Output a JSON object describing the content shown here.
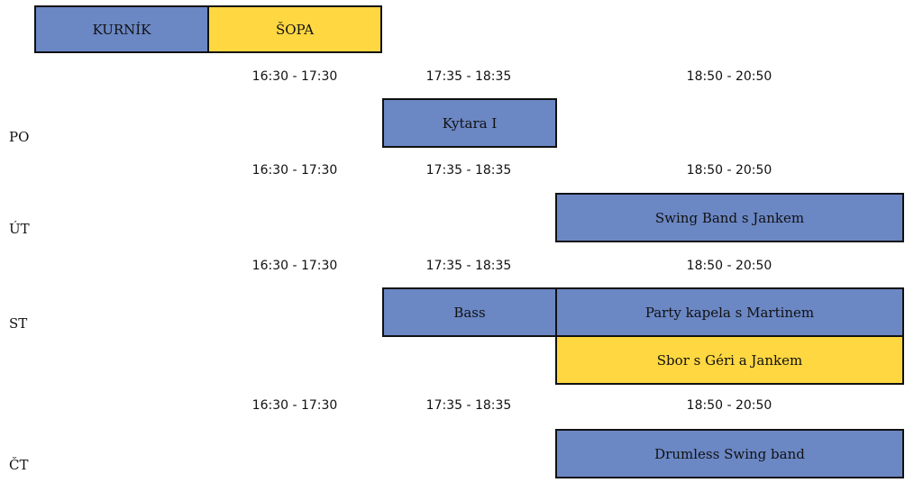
{
  "legend": {
    "kurnik": "KURNÍK",
    "sopa": "ŠOPA"
  },
  "colors": {
    "kurnik": "#6b87c4",
    "sopa": "#fed741",
    "border": "#111111"
  },
  "days": [
    {
      "label": "PO",
      "times": [
        "16:30 - 17:30",
        "17:35 - 18:35",
        "18:50 - 20:50"
      ],
      "events": [
        {
          "title": "Kytara I",
          "slot": "17:35 - 18:35",
          "room": "KURNÍK"
        }
      ]
    },
    {
      "label": "ÚT",
      "times": [
        "16:30 - 17:30",
        "17:35 - 18:35",
        "18:50 - 20:50"
      ],
      "events": [
        {
          "title": "Swing Band s Jankem",
          "slot": "18:50 - 20:50",
          "room": "KURNÍK"
        }
      ]
    },
    {
      "label": "ST",
      "times": [
        "16:30 - 17:30",
        "17:35 - 18:35",
        "18:50 - 20:50"
      ],
      "events": [
        {
          "title": "Bass",
          "slot": "17:35 - 18:35",
          "room": "KURNÍK"
        },
        {
          "title": "Party kapela s Martinem",
          "slot": "18:50 - 20:50",
          "room": "KURNÍK"
        },
        {
          "title": "Sbor s Géri a Jankem",
          "slot": "18:50 - 20:50",
          "room": "ŠOPA"
        }
      ]
    },
    {
      "label": "ČT",
      "times": [
        "16:30 - 17:30",
        "17:35 - 18:35",
        "18:50 - 20:50"
      ],
      "events": [
        {
          "title": "Drumless Swing band",
          "slot": "18:50 - 20:50",
          "room": "KURNÍK"
        }
      ]
    }
  ]
}
